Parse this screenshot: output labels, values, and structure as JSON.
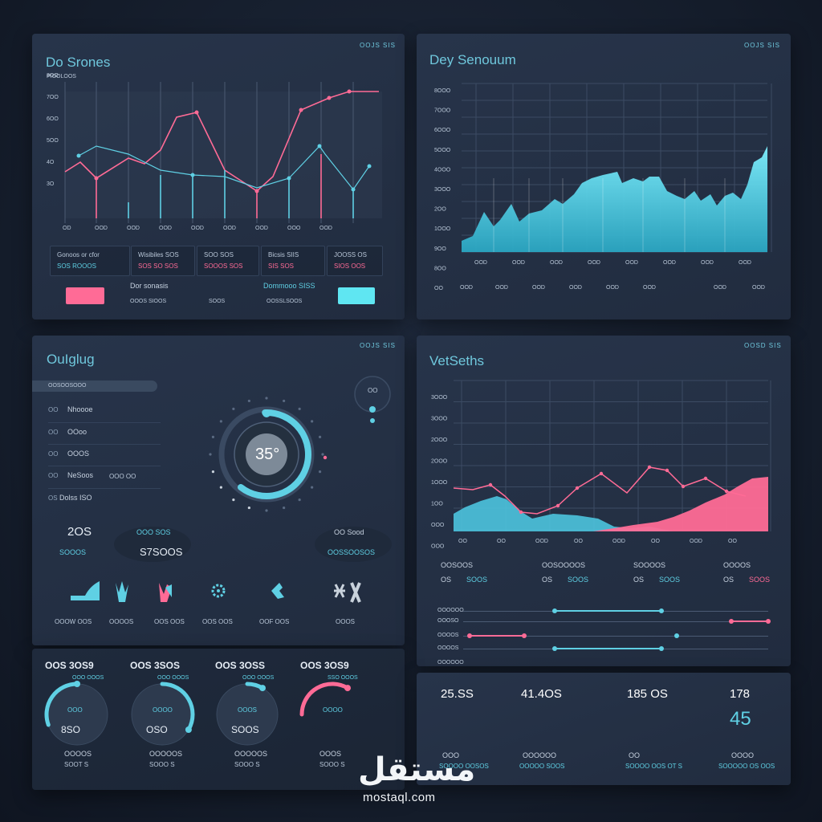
{
  "panel1": {
    "title": "Do Srones",
    "corner": "OOJS SIS",
    "subtitle": "PIOOLOOS",
    "y_ticks": [
      "8OO",
      "7OO",
      "6OO",
      "5OO",
      "4O",
      "3O"
    ],
    "x_ticks": [
      "OD",
      "OOD",
      "OOD",
      "OOD",
      "OOD",
      "OOD",
      "OOD",
      "OOO",
      "OOD"
    ],
    "stat_boxes": [
      {
        "label": "Gonoos or cfor",
        "value": "SOS ROOOS"
      },
      {
        "label": "Wisibiles SOS",
        "value": "SOS SO SOS"
      },
      {
        "label": "SOO SOS",
        "value": "SOOOS SOS"
      },
      {
        "label": "Bicsis SIIS",
        "value": "SIS SOS"
      },
      {
        "label": "JOOSS OS",
        "value": "SIOS OOS"
      }
    ],
    "bottom_labels": [
      {
        "label": "Dor sonasis",
        "value": "OOOS SIOOS"
      },
      {
        "label": "",
        "value": "SOOS"
      },
      {
        "label": "Dommooo SISS",
        "value": "OOSSLSOOS"
      }
    ],
    "colors": {
      "pink": "#ff6b96",
      "cyan": "#5fd0e4"
    }
  },
  "panel2": {
    "title": "Dey Senouum",
    "corner": "OOJS SIS",
    "y_ticks": [
      "8OOO",
      "7OOO",
      "6OOO",
      "5OOO",
      "4OOO",
      "3OOO",
      "2OO",
      "1OOO",
      "9OO",
      "8OO",
      "OO"
    ],
    "x_ticks": [
      "OOD",
      "OOD",
      "OOD",
      "OOD",
      "OOD",
      "OOD",
      "OOD",
      "OOD"
    ],
    "x_ticks2": [
      "OOD",
      "OOD",
      "OOD",
      "OOD",
      "OOD",
      "OOD",
      "OOD",
      "OOD"
    ]
  },
  "panel3": {
    "title": "OuIglug",
    "corner": "OOJS SIS",
    "search_value": "OOSOOSOOO",
    "list": [
      {
        "key": "OO",
        "label": "Nhoooe"
      },
      {
        "key": "OO",
        "label": "OOoo"
      },
      {
        "key": "OO",
        "label": "OOOS"
      },
      {
        "key": "OO",
        "label": "NeSoos",
        "extra": "OOO OO"
      },
      {
        "key": "OS",
        "label": "Dolss ISO"
      }
    ],
    "dial_value": "35°",
    "mini_dial": "OO",
    "stats": [
      {
        "value": "2OS",
        "label": "SOOOS"
      },
      {
        "value": "S7SOOS",
        "label": "OOO SOS"
      },
      {
        "value": "OO Sood",
        "label": "OOSSOOSOS"
      }
    ],
    "icons": [
      {
        "name": "wave-icon",
        "label": "OOOW OOS"
      },
      {
        "name": "hand-icon",
        "label": "OOOOS"
      },
      {
        "name": "hand-pink-icon",
        "label": "OOS OOS"
      },
      {
        "name": "gear-icon",
        "label": "OOS OOS"
      },
      {
        "name": "arrow-icon",
        "label": "OOF OOS"
      },
      {
        "name": "sparkle-icon",
        "label": "OOOS"
      }
    ]
  },
  "panel4": {
    "title": "VetSeths",
    "corner": "OOSD SIS",
    "y_ticks": [
      "3OOO",
      "3OOO",
      "2OOO",
      "2OOO",
      "1OOO",
      "1OO",
      "OOO",
      "OOO"
    ],
    "x_ticks": [
      "OO",
      "OO",
      "OOD",
      "OO",
      "OOD",
      "OO",
      "OOD",
      "OO"
    ],
    "stats": [
      {
        "label": "OOSOOS",
        "key": "OS",
        "value": "SOOS"
      },
      {
        "label": "OOSOOOOS",
        "key": "OS",
        "value": "SOOS"
      },
      {
        "label": "SOOOOS",
        "key": "OS",
        "value": "SOOS"
      },
      {
        "label": "OOOOS",
        "key": "OS",
        "value": "SOOS"
      }
    ],
    "sliders": [
      {
        "label": "OOOOOO",
        "from": 0.3,
        "to": 0.65,
        "color": "cyan"
      },
      {
        "label": "OOOSO",
        "from": 0.88,
        "to": 1.0,
        "color": "pink"
      },
      {
        "label": "OOOOS",
        "from": 0.02,
        "to": 0.2,
        "color": "pink",
        "tail": 0.7
      },
      {
        "label": "OOOOS",
        "from": 0.3,
        "to": 0.65,
        "color": "cyan"
      },
      {
        "label": "OOOOOO",
        "from": 0.0,
        "to": 0.0,
        "color": "cyan"
      }
    ]
  },
  "panel5": {
    "gauges": [
      {
        "title": "OOS 3OS9",
        "sub": "OOO OOOS",
        "center": "OOO",
        "value": "8SO",
        "label": "OOOOS",
        "sub2": "SOOT S",
        "pct": 0.35,
        "color": "cyan"
      },
      {
        "title": "OOS 3SOS",
        "sub": "OOO OOOS",
        "center": "OOOO",
        "value": "OSO",
        "label": "OOOOOS",
        "sub2": "SOOO S",
        "pct": 0.3,
        "color": "cyan"
      },
      {
        "title": "OOS 3OSS",
        "sub": "OOO OOOS",
        "center": "OOOS",
        "value": "SOOS",
        "label": "OOOOOS",
        "sub2": "SOOO S",
        "pct": 0.05,
        "color": "cyan"
      },
      {
        "title": "OOS 3OS9",
        "sub": "SSO OOOS",
        "center": "OOOO",
        "value": "",
        "label": "OOOS",
        "sub2": "SOOO S",
        "pct": 0.3,
        "color": "pink"
      }
    ]
  },
  "panel6": {
    "stats": [
      {
        "value": "25.SS",
        "label": "OOO",
        "sub": "SOOOO OOSOS"
      },
      {
        "value": "41.4OS",
        "label": "OOOOOO",
        "sub": "OOOOO SOOS"
      },
      {
        "value": "185 OS",
        "label": "OO",
        "sub": "SOOOO OOS OT S"
      },
      {
        "value": "178",
        "big": "45",
        "label": "OOOO",
        "sub": "SOOOOO OS OOS"
      }
    ]
  },
  "watermark": {
    "arabic": "مستقل",
    "latin": "mostaql.com"
  }
}
